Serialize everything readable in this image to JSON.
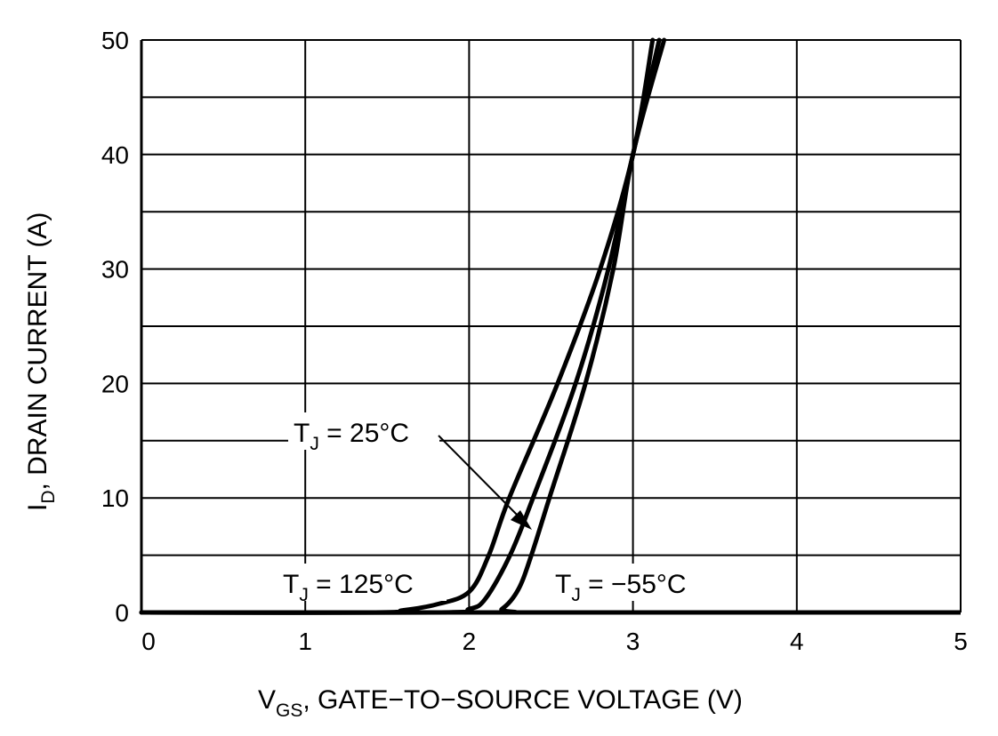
{
  "chart_data": {
    "type": "line",
    "xlabel": {
      "main": "V",
      "sub": "GS",
      "rest": ", GATE−TO−SOURCE VOLTAGE (V)"
    },
    "ylabel": {
      "main": "I",
      "sub": "D",
      "rest": ", DRAIN CURRENT (A)"
    },
    "xlim": [
      0,
      5
    ],
    "ylim": [
      0,
      50
    ],
    "x_ticks": [
      "0",
      "1",
      "2",
      "3",
      "4",
      "5"
    ],
    "y_ticks": [
      "0",
      "10",
      "20",
      "30",
      "40",
      "50"
    ],
    "grid": true,
    "grid_x_step": 1,
    "grid_y_step": 5,
    "line_color": "#000000",
    "series": [
      {
        "name": "T_J = 125°C",
        "label": {
          "main": "T",
          "sub": "J",
          "rest": " = 125°C"
        },
        "points": [
          [
            0,
            0
          ],
          [
            1.4,
            0
          ],
          [
            1.6,
            0.2
          ],
          [
            1.8,
            0.7
          ],
          [
            2.0,
            1.8
          ],
          [
            2.12,
            5
          ],
          [
            2.245,
            10
          ],
          [
            2.54,
            20
          ],
          [
            2.8,
            30
          ],
          [
            3.0,
            40
          ],
          [
            3.12,
            50
          ]
        ]
      },
      {
        "name": "T_J = 25°C",
        "label": {
          "main": "T",
          "sub": "J",
          "rest": " = 25°C"
        },
        "points": [
          [
            0,
            0
          ],
          [
            1.8,
            0
          ],
          [
            2.0,
            0.3
          ],
          [
            2.1,
            1.2
          ],
          [
            2.25,
            5
          ],
          [
            2.39,
            10
          ],
          [
            2.65,
            20
          ],
          [
            2.85,
            30
          ],
          [
            3.0,
            40
          ],
          [
            3.16,
            50
          ]
        ]
      },
      {
        "name": "T_J = −55°C",
        "label": {
          "main": "T",
          "sub": "J",
          "rest": " = −55°C"
        },
        "points": [
          [
            0,
            0
          ],
          [
            2.1,
            0
          ],
          [
            2.2,
            0.3
          ],
          [
            2.3,
            2
          ],
          [
            2.38,
            5
          ],
          [
            2.49,
            10
          ],
          [
            2.71,
            20
          ],
          [
            2.88,
            30
          ],
          [
            3.0,
            40
          ],
          [
            3.19,
            50
          ]
        ]
      }
    ]
  }
}
